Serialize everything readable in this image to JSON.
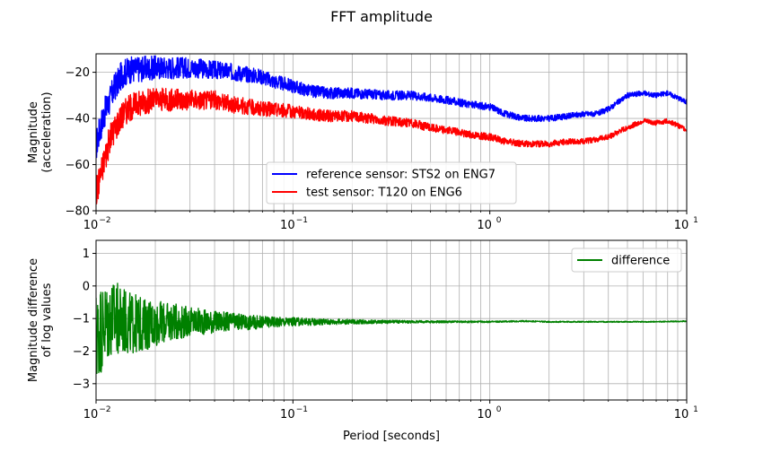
{
  "figure": {
    "title": "FFT amplitude"
  },
  "chart_data": [
    {
      "type": "line",
      "xscale": "log",
      "xlim": [
        0.01,
        10
      ],
      "ylim": [
        -80,
        -12
      ],
      "xlabel": "",
      "ylabel": [
        "Magnitude",
        "(acceleration)"
      ],
      "xticks": [
        {
          "value": 0.01,
          "base": "10",
          "exp": "−2"
        },
        {
          "value": 0.1,
          "base": "10",
          "exp": "−1"
        },
        {
          "value": 1,
          "base": "10",
          "exp": "0"
        },
        {
          "value": 10,
          "base": "10",
          "exp": "1"
        }
      ],
      "yticks": [
        -80,
        -60,
        -40,
        -20
      ],
      "ytick_labels": [
        "−80",
        "−60",
        "−40",
        "−20"
      ],
      "grid": "major and minor",
      "legend_position": "lower-center",
      "series": [
        {
          "name": "reference sensor: STS2 on ENG7",
          "color": "#0000ff",
          "x": [
            0.01,
            0.0105,
            0.011,
            0.0115,
            0.012,
            0.0125,
            0.013,
            0.0135,
            0.014,
            0.015,
            0.017,
            0.02,
            0.025,
            0.03,
            0.04,
            0.05,
            0.06,
            0.07,
            0.08,
            0.1,
            0.12,
            0.15,
            0.2,
            0.3,
            0.4,
            0.5,
            0.6,
            0.8,
            1.0,
            1.2,
            1.5,
            2.0,
            2.5,
            3.0,
            3.5,
            4.0,
            5.0,
            6.0,
            7.0,
            8.0,
            9.0,
            10.0
          ],
          "y": [
            -52,
            -44,
            -38,
            -34,
            -30,
            -26,
            -24,
            -21,
            -20,
            -19,
            -18.5,
            -18,
            -18,
            -18,
            -19,
            -20,
            -21,
            -22,
            -24,
            -26,
            -28,
            -29,
            -29,
            -30,
            -30,
            -31,
            -32,
            -34,
            -35,
            -38,
            -40,
            -40,
            -39,
            -38,
            -38,
            -36,
            -30,
            -29,
            -30,
            -29,
            -31,
            -33
          ]
        },
        {
          "name": "test sensor: T120 on ENG6",
          "color": "#ff0000",
          "x": [
            0.01,
            0.0105,
            0.011,
            0.0115,
            0.012,
            0.0125,
            0.013,
            0.0135,
            0.014,
            0.015,
            0.017,
            0.02,
            0.025,
            0.03,
            0.04,
            0.05,
            0.06,
            0.07,
            0.08,
            0.1,
            0.12,
            0.15,
            0.2,
            0.3,
            0.4,
            0.5,
            0.6,
            0.8,
            1.0,
            1.2,
            1.5,
            2.0,
            2.5,
            3.0,
            3.5,
            4.0,
            5.0,
            6.0,
            7.0,
            8.0,
            9.0,
            10.0
          ],
          "y": [
            -72,
            -65,
            -58,
            -52,
            -47,
            -44,
            -41,
            -39,
            -37,
            -35,
            -33,
            -32,
            -32,
            -32,
            -32,
            -34,
            -35,
            -36,
            -36,
            -37,
            -38,
            -39,
            -39,
            -41,
            -42,
            -44,
            -45,
            -47,
            -48,
            -50,
            -51,
            -51,
            -50,
            -50,
            -49,
            -48,
            -44,
            -41,
            -42,
            -41,
            -43,
            -45
          ]
        }
      ]
    },
    {
      "type": "line",
      "xscale": "log",
      "xlim": [
        0.01,
        10
      ],
      "ylim": [
        -3.5,
        1.4
      ],
      "xlabel": "Period [seconds]",
      "ylabel": [
        "Magnitude difference",
        "of log values"
      ],
      "xticks": [
        {
          "value": 0.01,
          "base": "10",
          "exp": "−2"
        },
        {
          "value": 0.1,
          "base": "10",
          "exp": "−1"
        },
        {
          "value": 1,
          "base": "10",
          "exp": "0"
        },
        {
          "value": 10,
          "base": "10",
          "exp": "1"
        }
      ],
      "yticks": [
        -3,
        -2,
        -1,
        0,
        1
      ],
      "ytick_labels": [
        "−3",
        "−2",
        "−1",
        "0",
        "1"
      ],
      "grid": "major and minor",
      "legend_position": "top-right",
      "series": [
        {
          "name": "difference",
          "color": "#008000",
          "x": [
            0.01,
            0.0105,
            0.011,
            0.0115,
            0.012,
            0.0125,
            0.013,
            0.0135,
            0.014,
            0.015,
            0.017,
            0.02,
            0.025,
            0.03,
            0.04,
            0.05,
            0.06,
            0.08,
            0.1,
            0.15,
            0.2,
            0.3,
            0.5,
            0.7,
            1.0,
            1.5,
            2.0,
            3.0,
            5.0,
            7.0,
            10.0
          ],
          "y": [
            -1.6,
            -1.3,
            -1.2,
            -1.1,
            -1.0,
            -1.0,
            -1.05,
            -1.1,
            -1.1,
            -1.15,
            -1.2,
            -1.15,
            -1.1,
            -1.1,
            -1.1,
            -1.1,
            -1.12,
            -1.1,
            -1.1,
            -1.1,
            -1.1,
            -1.1,
            -1.1,
            -1.1,
            -1.1,
            -1.08,
            -1.1,
            -1.1,
            -1.1,
            -1.1,
            -1.08
          ]
        }
      ]
    }
  ]
}
